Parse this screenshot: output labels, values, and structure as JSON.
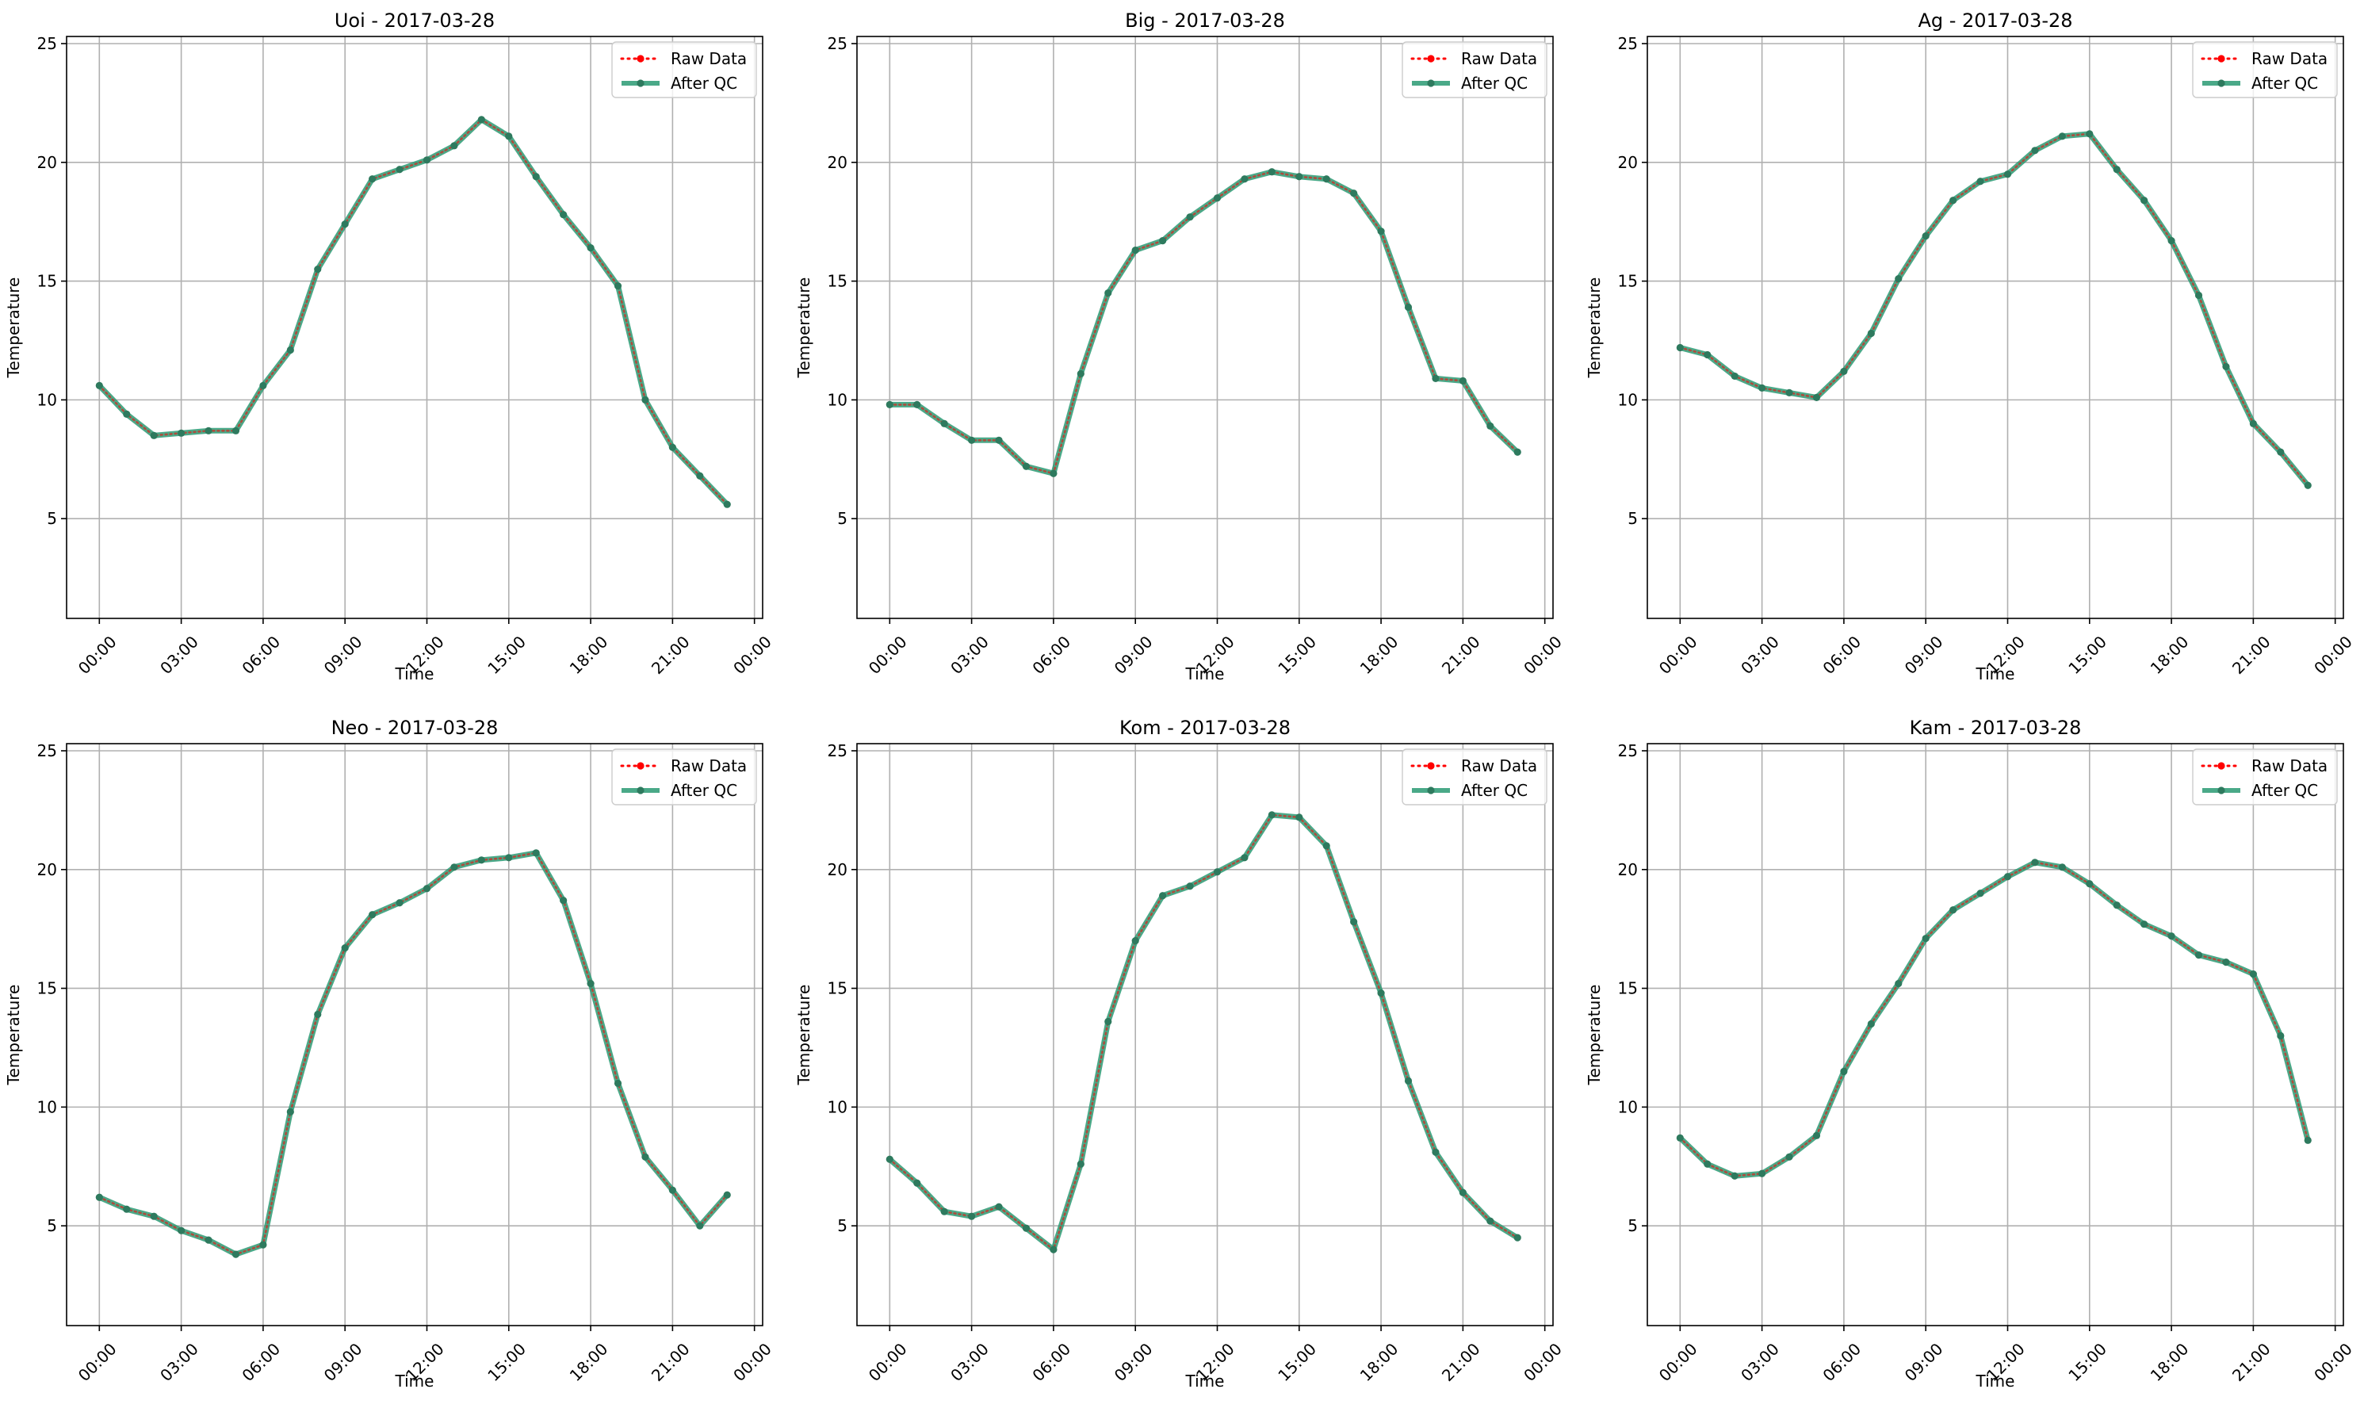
{
  "colors": {
    "raw": "#ff0000",
    "qc": "#2a9a73",
    "marker": "#2e7a5e"
  },
  "chart_data": [
    {
      "type": "line",
      "title": "Uoi - 2017-03-28",
      "xlabel": "Time",
      "ylabel": "Temperature",
      "ylim": [
        0.8,
        25.3
      ],
      "yticks": [
        5,
        10,
        15,
        20,
        25
      ],
      "xlim": [
        -1.2,
        24.3
      ],
      "xticks": [
        0,
        3,
        6,
        9,
        12,
        15,
        18,
        21,
        24
      ],
      "xtick_labels": [
        "00:00",
        "03:00",
        "06:00",
        "09:00",
        "12:00",
        "15:00",
        "18:00",
        "21:00",
        "00:00"
      ],
      "grid": true,
      "legend_position": "upper right",
      "x": [
        0,
        1,
        2,
        3,
        4,
        5,
        6,
        7,
        8,
        9,
        10,
        11,
        12,
        13,
        14,
        15,
        16,
        17,
        18,
        19,
        20,
        21,
        22,
        23
      ],
      "series": [
        {
          "name": "Raw Data",
          "style": "dotted",
          "values": [
            10.6,
            9.4,
            8.5,
            8.6,
            8.7,
            8.7,
            10.6,
            12.1,
            15.5,
            17.4,
            19.3,
            19.7,
            20.1,
            20.7,
            21.8,
            21.1,
            19.4,
            17.8,
            16.4,
            14.8,
            10.0,
            8.0,
            6.8,
            5.6
          ]
        },
        {
          "name": "After QC",
          "style": "solid",
          "values": [
            10.6,
            9.4,
            8.5,
            8.6,
            8.7,
            8.7,
            10.6,
            12.1,
            15.5,
            17.4,
            19.3,
            19.7,
            20.1,
            20.7,
            21.8,
            21.1,
            19.4,
            17.8,
            16.4,
            14.8,
            10.0,
            8.0,
            6.8,
            5.6
          ]
        }
      ]
    },
    {
      "type": "line",
      "title": "Big - 2017-03-28",
      "xlabel": "Time",
      "ylabel": "Temperature",
      "ylim": [
        0.8,
        25.3
      ],
      "yticks": [
        5,
        10,
        15,
        20,
        25
      ],
      "xlim": [
        -1.2,
        24.3
      ],
      "xticks": [
        0,
        3,
        6,
        9,
        12,
        15,
        18,
        21,
        24
      ],
      "xtick_labels": [
        "00:00",
        "03:00",
        "06:00",
        "09:00",
        "12:00",
        "15:00",
        "18:00",
        "21:00",
        "00:00"
      ],
      "grid": true,
      "legend_position": "upper right",
      "x": [
        0,
        1,
        2,
        3,
        4,
        5,
        6,
        7,
        8,
        9,
        10,
        11,
        12,
        13,
        14,
        15,
        16,
        17,
        18,
        19,
        20,
        21,
        22,
        23
      ],
      "series": [
        {
          "name": "Raw Data",
          "style": "dotted",
          "values": [
            9.8,
            9.8,
            9.0,
            8.3,
            8.3,
            7.2,
            6.9,
            11.1,
            14.5,
            16.3,
            16.7,
            17.7,
            18.5,
            19.3,
            19.6,
            19.4,
            19.3,
            18.7,
            17.1,
            13.9,
            10.9,
            10.8,
            8.9,
            7.8
          ]
        },
        {
          "name": "After QC",
          "style": "solid",
          "values": [
            9.8,
            9.8,
            9.0,
            8.3,
            8.3,
            7.2,
            6.9,
            11.1,
            14.5,
            16.3,
            16.7,
            17.7,
            18.5,
            19.3,
            19.6,
            19.4,
            19.3,
            18.7,
            17.1,
            13.9,
            10.9,
            10.8,
            8.9,
            7.8
          ]
        }
      ]
    },
    {
      "type": "line",
      "title": "Ag - 2017-03-28",
      "xlabel": "Time",
      "ylabel": "Temperature",
      "ylim": [
        0.8,
        25.3
      ],
      "yticks": [
        5,
        10,
        15,
        20,
        25
      ],
      "xlim": [
        -1.2,
        24.3
      ],
      "xticks": [
        0,
        3,
        6,
        9,
        12,
        15,
        18,
        21,
        24
      ],
      "xtick_labels": [
        "00:00",
        "03:00",
        "06:00",
        "09:00",
        "12:00",
        "15:00",
        "18:00",
        "21:00",
        "00:00"
      ],
      "grid": true,
      "legend_position": "upper right",
      "x": [
        0,
        1,
        2,
        3,
        4,
        5,
        6,
        7,
        8,
        9,
        10,
        11,
        12,
        13,
        14,
        15,
        16,
        17,
        18,
        19,
        20,
        21,
        22,
        23
      ],
      "series": [
        {
          "name": "Raw Data",
          "style": "dotted",
          "values": [
            12.2,
            11.9,
            11.0,
            10.5,
            10.3,
            10.1,
            11.2,
            12.8,
            15.1,
            16.9,
            18.4,
            19.2,
            19.5,
            20.5,
            21.1,
            21.2,
            19.7,
            18.4,
            16.7,
            14.4,
            11.4,
            9.0,
            7.8,
            6.4
          ]
        },
        {
          "name": "After QC",
          "style": "solid",
          "values": [
            12.2,
            11.9,
            11.0,
            10.5,
            10.3,
            10.1,
            11.2,
            12.8,
            15.1,
            16.9,
            18.4,
            19.2,
            19.5,
            20.5,
            21.1,
            21.2,
            19.7,
            18.4,
            16.7,
            14.4,
            11.4,
            9.0,
            7.8,
            6.4
          ]
        }
      ]
    },
    {
      "type": "line",
      "title": "Neo - 2017-03-28",
      "xlabel": "Time",
      "ylabel": "Temperature",
      "ylim": [
        0.8,
        25.3
      ],
      "yticks": [
        5,
        10,
        15,
        20,
        25
      ],
      "xlim": [
        -1.2,
        24.3
      ],
      "xticks": [
        0,
        3,
        6,
        9,
        12,
        15,
        18,
        21,
        24
      ],
      "xtick_labels": [
        "00:00",
        "03:00",
        "06:00",
        "09:00",
        "12:00",
        "15:00",
        "18:00",
        "21:00",
        "00:00"
      ],
      "grid": true,
      "legend_position": "upper right",
      "x": [
        0,
        1,
        2,
        3,
        4,
        5,
        6,
        7,
        8,
        9,
        10,
        11,
        12,
        13,
        14,
        15,
        16,
        17,
        18,
        19,
        20,
        21,
        22,
        23
      ],
      "series": [
        {
          "name": "Raw Data",
          "style": "dotted",
          "values": [
            6.2,
            5.7,
            5.4,
            4.8,
            4.4,
            3.8,
            4.2,
            9.8,
            13.9,
            16.7,
            18.1,
            18.6,
            19.2,
            20.1,
            20.4,
            20.5,
            20.7,
            18.7,
            15.2,
            11.0,
            7.9,
            6.5,
            5.0,
            6.3
          ]
        },
        {
          "name": "After QC",
          "style": "solid",
          "values": [
            6.2,
            5.7,
            5.4,
            4.8,
            4.4,
            3.8,
            4.2,
            9.8,
            13.9,
            16.7,
            18.1,
            18.6,
            19.2,
            20.1,
            20.4,
            20.5,
            20.7,
            18.7,
            15.2,
            11.0,
            7.9,
            6.5,
            5.0,
            6.3
          ]
        }
      ]
    },
    {
      "type": "line",
      "title": "Kom - 2017-03-28",
      "xlabel": "Time",
      "ylabel": "Temperature",
      "ylim": [
        0.8,
        25.3
      ],
      "yticks": [
        5,
        10,
        15,
        20,
        25
      ],
      "xlim": [
        -1.2,
        24.3
      ],
      "xticks": [
        0,
        3,
        6,
        9,
        12,
        15,
        18,
        21,
        24
      ],
      "xtick_labels": [
        "00:00",
        "03:00",
        "06:00",
        "09:00",
        "12:00",
        "15:00",
        "18:00",
        "21:00",
        "00:00"
      ],
      "grid": true,
      "legend_position": "upper right",
      "x": [
        0,
        1,
        2,
        3,
        4,
        5,
        6,
        7,
        8,
        9,
        10,
        11,
        12,
        13,
        14,
        15,
        16,
        17,
        18,
        19,
        20,
        21,
        22,
        23
      ],
      "series": [
        {
          "name": "Raw Data",
          "style": "dotted",
          "values": [
            7.8,
            6.8,
            5.6,
            5.4,
            5.8,
            4.9,
            4.0,
            7.6,
            13.6,
            17.0,
            18.9,
            19.3,
            19.9,
            20.5,
            22.3,
            22.2,
            21.0,
            17.8,
            14.8,
            11.1,
            8.1,
            6.4,
            5.2,
            4.5
          ]
        },
        {
          "name": "After QC",
          "style": "solid",
          "values": [
            7.8,
            6.8,
            5.6,
            5.4,
            5.8,
            4.9,
            4.0,
            7.6,
            13.6,
            17.0,
            18.9,
            19.3,
            19.9,
            20.5,
            22.3,
            22.2,
            21.0,
            17.8,
            14.8,
            11.1,
            8.1,
            6.4,
            5.2,
            4.5
          ]
        }
      ]
    },
    {
      "type": "line",
      "title": "Kam - 2017-03-28",
      "xlabel": "Time",
      "ylabel": "Temperature",
      "ylim": [
        0.8,
        25.3
      ],
      "yticks": [
        5,
        10,
        15,
        20,
        25
      ],
      "xlim": [
        -1.2,
        24.3
      ],
      "xticks": [
        0,
        3,
        6,
        9,
        12,
        15,
        18,
        21,
        24
      ],
      "xtick_labels": [
        "00:00",
        "03:00",
        "06:00",
        "09:00",
        "12:00",
        "15:00",
        "18:00",
        "21:00",
        "00:00"
      ],
      "grid": true,
      "legend_position": "upper right",
      "x": [
        0,
        1,
        2,
        3,
        4,
        5,
        6,
        7,
        8,
        9,
        10,
        11,
        12,
        13,
        14,
        15,
        16,
        17,
        18,
        19,
        20,
        21,
        22,
        23
      ],
      "series": [
        {
          "name": "Raw Data",
          "style": "dotted",
          "values": [
            8.7,
            7.6,
            7.1,
            7.2,
            7.9,
            8.8,
            11.5,
            13.5,
            15.2,
            17.1,
            18.3,
            19.0,
            19.7,
            20.3,
            20.1,
            19.4,
            18.5,
            17.7,
            17.2,
            16.4,
            16.1,
            15.6,
            13.0,
            8.6
          ]
        },
        {
          "name": "After QC",
          "style": "solid",
          "values": [
            8.7,
            7.6,
            7.1,
            7.2,
            7.9,
            8.8,
            11.5,
            13.5,
            15.2,
            17.1,
            18.3,
            19.0,
            19.7,
            20.3,
            20.1,
            19.4,
            18.5,
            17.7,
            17.2,
            16.4,
            16.1,
            15.6,
            13.0,
            8.6
          ]
        }
      ]
    }
  ]
}
